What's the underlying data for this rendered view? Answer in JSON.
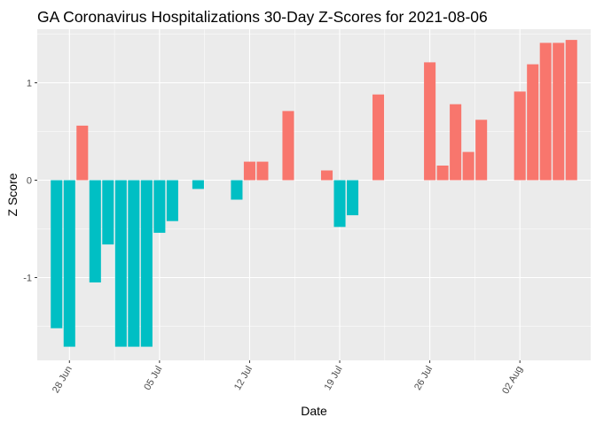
{
  "chart_data": {
    "type": "bar",
    "title": "GA Coronavirus Hospitalizations 30-Day Z-Scores for 2021-08-06",
    "xlabel": "Date",
    "ylabel": "Z Score",
    "ylim": [
      -1.85,
      1.55
    ],
    "x_ticks": [
      {
        "date": "2021-06-28",
        "label": "28 Jun"
      },
      {
        "date": "2021-07-05",
        "label": "05 Jul"
      },
      {
        "date": "2021-07-12",
        "label": "12 Jul"
      },
      {
        "date": "2021-07-19",
        "label": "19 Jul"
      },
      {
        "date": "2021-07-26",
        "label": "26 Jul"
      },
      {
        "date": "2021-08-02",
        "label": "02 Aug"
      }
    ],
    "y_ticks": [
      -1,
      0,
      1
    ],
    "fill_colors": {
      "positive": "#F8766D",
      "negative": "#00BFC4"
    },
    "panel_background": "#EBEBEB",
    "grid": true,
    "legend": "none",
    "dates": [
      "2021-06-27",
      "2021-06-28",
      "2021-06-29",
      "2021-06-30",
      "2021-07-01",
      "2021-07-02",
      "2021-07-03",
      "2021-07-04",
      "2021-07-05",
      "2021-07-06",
      "2021-07-07",
      "2021-07-08",
      "2021-07-09",
      "2021-07-10",
      "2021-07-11",
      "2021-07-12",
      "2021-07-13",
      "2021-07-14",
      "2021-07-15",
      "2021-07-16",
      "2021-07-17",
      "2021-07-18",
      "2021-07-19",
      "2021-07-20",
      "2021-07-21",
      "2021-07-22",
      "2021-07-23",
      "2021-07-24",
      "2021-07-25",
      "2021-07-26",
      "2021-07-27",
      "2021-07-28",
      "2021-07-29",
      "2021-07-30",
      "2021-07-31",
      "2021-08-01",
      "2021-08-02",
      "2021-08-03",
      "2021-08-04",
      "2021-08-05",
      "2021-08-06"
    ],
    "values": [
      -1.52,
      -1.71,
      0.56,
      -1.05,
      -0.66,
      -1.71,
      -1.71,
      -1.71,
      -0.54,
      -0.42,
      null,
      -0.09,
      null,
      null,
      -0.2,
      0.19,
      0.19,
      null,
      0.71,
      null,
      null,
      0.1,
      -0.48,
      -0.36,
      null,
      0.88,
      null,
      null,
      null,
      1.21,
      0.15,
      0.78,
      0.29,
      0.62,
      null,
      null,
      0.91,
      1.19,
      1.41,
      1.41,
      1.44
    ]
  }
}
